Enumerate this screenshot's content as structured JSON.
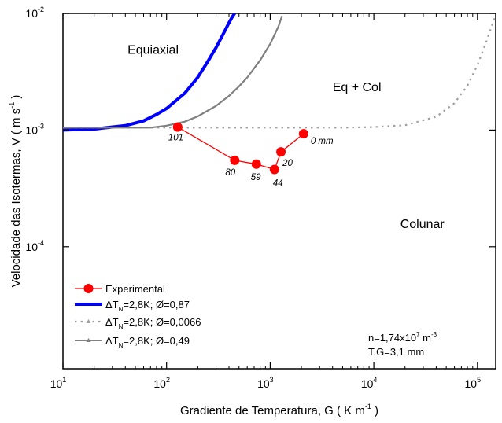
{
  "chart_data": {
    "type": "line",
    "xlabel_main": "Gradiente de Temperatura, G ( K m",
    "xlabel_sup": "-1",
    "xlabel_close": " )",
    "ylabel_main": "Velocidade das Isotermas, V ( m s",
    "ylabel_sup": "-1",
    "ylabel_close": " )",
    "x_scale": "log",
    "y_scale": "log",
    "xlim": [
      10,
      150000
    ],
    "ylim": [
      9e-06,
      0.01
    ],
    "x_ticks": [
      {
        "value": 10,
        "base": "10",
        "exp": "1"
      },
      {
        "value": 100,
        "base": "10",
        "exp": "2"
      },
      {
        "value": 1000,
        "base": "10",
        "exp": "3"
      },
      {
        "value": 10000,
        "base": "10",
        "exp": "4"
      },
      {
        "value": 100000,
        "base": "10",
        "exp": "5"
      }
    ],
    "y_ticks": [
      {
        "value": 0.01,
        "base": "10",
        "exp": "-2"
      },
      {
        "value": 0.001,
        "base": "10",
        "exp": "-3"
      },
      {
        "value": 0.0001,
        "base": "10",
        "exp": "-4"
      }
    ],
    "grid": false,
    "region_labels": [
      {
        "text": "Equiaxial",
        "x": 42,
        "y": 0.0045
      },
      {
        "text": "Eq + Col",
        "x": 4000,
        "y": 0.00215
      },
      {
        "text": "Colunar",
        "x": 18000,
        "y": 0.000145
      }
    ],
    "experimental_series": {
      "name": "Experimental",
      "color": "#ff0000",
      "points": [
        {
          "x": 128,
          "y": 0.00106,
          "label": "101"
        },
        {
          "x": 455,
          "y": 0.00055,
          "label": "80"
        },
        {
          "x": 735,
          "y": 0.00051,
          "label": "59"
        },
        {
          "x": 1100,
          "y": 0.00046,
          "label": "44"
        },
        {
          "x": 1270,
          "y": 0.00065,
          "label": "20"
        },
        {
          "x": 2100,
          "y": 0.00093,
          "label": "0 mm"
        }
      ]
    },
    "series": [
      {
        "name": "=2,8K; Ø=0,87",
        "color": "#0000ff",
        "style": "solid-thick",
        "x": [
          10,
          20,
          40,
          60,
          80,
          100,
          150,
          200,
          250,
          300,
          350,
          400,
          430,
          470
        ],
        "y": [
          0.001,
          0.00102,
          0.00109,
          0.0012,
          0.00136,
          0.00153,
          0.00207,
          0.00283,
          0.00387,
          0.00508,
          0.0066,
          0.0083,
          0.0093,
          0.0105
        ]
      },
      {
        "name": "=2,8K; Ø=0,0066",
        "color": "#a0a0a0",
        "style": "dotted",
        "x": [
          10,
          100,
          1000,
          5000,
          10000,
          20000,
          40000,
          60000,
          80000,
          100000,
          120000,
          140000,
          150000
        ],
        "y": [
          0.00105,
          0.00105,
          0.00105,
          0.00105,
          0.00106,
          0.0011,
          0.0013,
          0.0017,
          0.0024,
          0.0036,
          0.0055,
          0.0082,
          0.0096
        ]
      },
      {
        "name": "=2,8K; Ø=0,49",
        "color": "#808080",
        "style": "solid",
        "x": [
          10,
          70,
          100,
          150,
          200,
          300,
          400,
          500,
          600,
          800,
          1000,
          1200,
          1300
        ],
        "y": [
          0.00105,
          0.00105,
          0.00109,
          0.00118,
          0.00131,
          0.00161,
          0.00196,
          0.00237,
          0.00282,
          0.00396,
          0.00548,
          0.0077,
          0.0095
        ]
      }
    ],
    "legend": {
      "placement": "bottom-left",
      "entries": [
        {
          "text": "Experimental",
          "prefix": ""
        },
        {
          "text": "=2,8K; Ø=0,87",
          "prefix": "ΔT",
          "sub": "N"
        },
        {
          "text": "=2,8K; Ø=0,0066",
          "prefix": "ΔT",
          "sub": "N"
        },
        {
          "text": "=2,8K; Ø=0,49",
          "prefix": "ΔT",
          "sub": "N"
        }
      ]
    },
    "annotation": {
      "line1_main": "n=1,74x10",
      "line1_sup": "7",
      "line1_unit": " m",
      "line1_unit_sup": "-3",
      "line2": "T.G=3,1 mm"
    }
  }
}
